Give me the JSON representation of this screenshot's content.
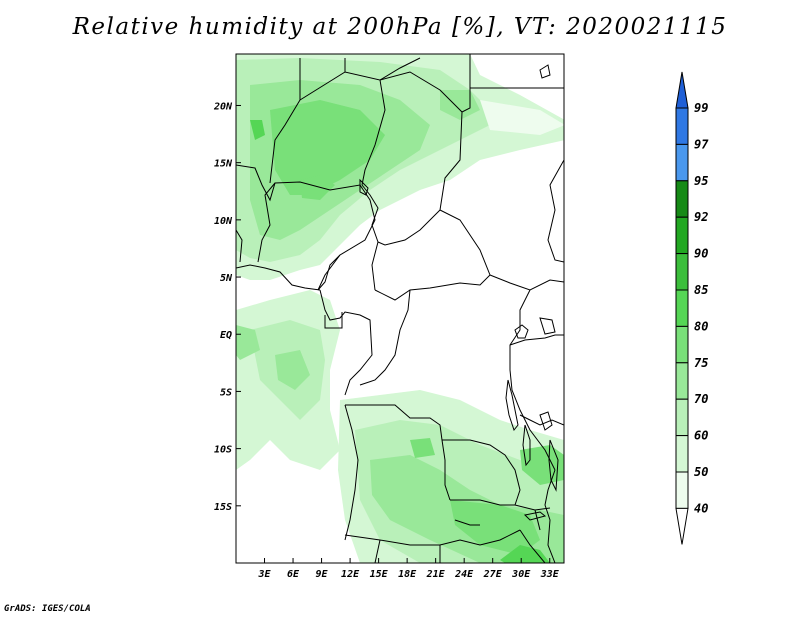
{
  "title": "Relative humidity at 200hPa [%], VT: 2020021115",
  "credit": "GrADS: IGES/COLA",
  "map": {
    "lon_range": [
      0,
      34.5
    ],
    "lat_range": [
      -20,
      24.5
    ],
    "lon_ticks": [
      "3E",
      "6E",
      "9E",
      "12E",
      "15E",
      "18E",
      "21E",
      "24E",
      "27E",
      "30E",
      "33E"
    ],
    "lat_ticks": [
      "20N",
      "15N",
      "10N",
      "5N",
      "EQ",
      "5S",
      "10S",
      "15S"
    ]
  },
  "colorbar": {
    "levels": [
      "99",
      "97",
      "95",
      "92",
      "90",
      "85",
      "80",
      "75",
      "70",
      "60",
      "50",
      "40"
    ],
    "colors": [
      "#1f5fd6",
      "#2f78e4",
      "#4a98ee",
      "#168a16",
      "#22a822",
      "#3bbe3b",
      "#55d655",
      "#79e079",
      "#99e899",
      "#b9f0b9",
      "#d4f7d4",
      "#eefcee"
    ]
  }
}
